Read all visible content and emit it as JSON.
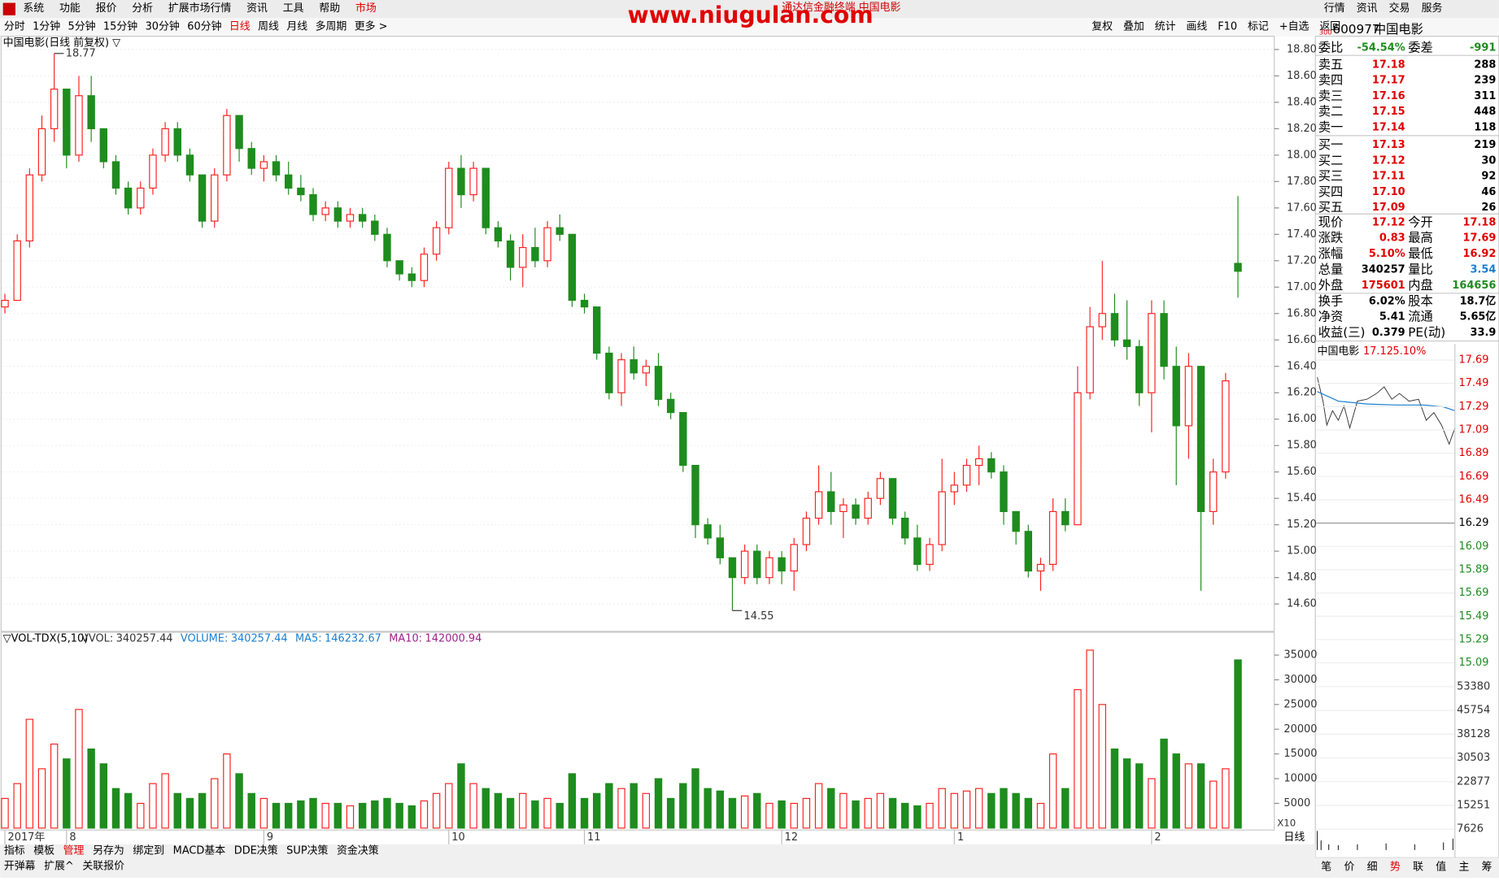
{
  "menu": [
    "系统",
    "功能",
    "报价",
    "分析",
    "扩展市场行情",
    "资讯",
    "工具",
    "帮助",
    "市场"
  ],
  "window_title": "通达信金融终端 中国电影",
  "watermark": "www.niugulan.com",
  "top_buttons": [
    "行情",
    "资讯",
    "交易",
    "服务"
  ],
  "periods": [
    "分时",
    "1分钟",
    "5分钟",
    "15分钟",
    "30分钟",
    "60分钟",
    "日线",
    "周线",
    "月线",
    "多周期",
    "更多 >"
  ],
  "active_period": 6,
  "tools": [
    "复权",
    "叠加",
    "统计",
    "画线",
    "F10",
    "标记",
    "+自选",
    "返回"
  ],
  "chart_data": {
    "type": "candlestick",
    "title": "中国电影(日线 前复权) ▽",
    "up_color": "#ff2020",
    "down_color": "#1e8c1e",
    "ylim": [
      14.4,
      18.9
    ],
    "yticks": [
      {
        "value": 14.6,
        "label": "14.60"
      },
      {
        "value": 14.8,
        "label": "14.80"
      },
      {
        "value": 15,
        "label": "15.00"
      },
      {
        "value": 15.2,
        "label": "15.20"
      },
      {
        "value": 15.4,
        "label": "15.40"
      },
      {
        "value": 15.6,
        "label": "15.60"
      },
      {
        "value": 15.8,
        "label": "15.80"
      },
      {
        "value": 16,
        "label": "16.00"
      },
      {
        "value": 16.2,
        "label": "16.20"
      },
      {
        "value": 16.4,
        "label": "16.40"
      },
      {
        "value": 16.6,
        "label": "16.60"
      },
      {
        "value": 16.8,
        "label": "16.80"
      },
      {
        "value": 17,
        "label": "17.00"
      },
      {
        "value": 17.2,
        "label": "17.20"
      },
      {
        "value": 17.4,
        "label": "17.40"
      },
      {
        "value": 17.6,
        "label": "17.60"
      },
      {
        "value": 17.8,
        "label": "17.80"
      },
      {
        "value": 18,
        "label": "18.00"
      },
      {
        "value": 18.2,
        "label": "18.20"
      },
      {
        "value": 18.4,
        "label": "18.40"
      },
      {
        "value": 18.6,
        "label": "18.60"
      },
      {
        "value": 18.8,
        "label": "18.80"
      }
    ],
    "max_label": 18.77,
    "min_label": 14.55,
    "categories": [
      "2017年",
      null,
      null,
      null,
      null,
      "8",
      null,
      null,
      null,
      null,
      null,
      null,
      null,
      null,
      null,
      null,
      null,
      null,
      null,
      null,
      null,
      "9",
      null,
      null,
      null,
      null,
      null,
      null,
      null,
      null,
      null,
      null,
      null,
      null,
      null,
      null,
      "10",
      null,
      null,
      null,
      null,
      null,
      null,
      null,
      null,
      null,
      null,
      "11",
      null,
      null,
      null,
      null,
      null,
      null,
      null,
      null,
      null,
      null,
      null,
      null,
      null,
      null,
      null,
      "12",
      null,
      null,
      null,
      null,
      null,
      null,
      null,
      null,
      null,
      null,
      null,
      null,
      null,
      "1",
      null,
      null,
      null,
      null,
      null,
      null,
      null,
      null,
      null,
      null,
      null,
      null,
      null,
      null,
      null,
      "2",
      null,
      null,
      null,
      null,
      null,
      null,
      null
    ],
    "candles": [
      [
        16.85,
        16.95,
        16.8,
        16.9,
        6000
      ],
      [
        16.9,
        17.4,
        16.9,
        17.35,
        9000
      ],
      [
        17.35,
        17.9,
        17.3,
        17.85,
        22000
      ],
      [
        17.85,
        18.3,
        17.8,
        18.2,
        12000
      ],
      [
        18.2,
        18.77,
        18.1,
        18.5,
        17000
      ],
      [
        18.5,
        18.5,
        17.9,
        18,
        14000
      ],
      [
        18,
        18.6,
        17.95,
        18.45,
        24000
      ],
      [
        18.45,
        18.6,
        18.1,
        18.2,
        16000
      ],
      [
        18.2,
        18.2,
        17.9,
        17.95,
        13000
      ],
      [
        17.95,
        18,
        17.7,
        17.75,
        8000
      ],
      [
        17.75,
        17.8,
        17.55,
        17.6,
        7000
      ],
      [
        17.6,
        17.8,
        17.55,
        17.75,
        5000
      ],
      [
        17.75,
        18.05,
        17.7,
        18,
        9000
      ],
      [
        18,
        18.25,
        17.95,
        18.2,
        11000
      ],
      [
        18.2,
        18.25,
        17.95,
        18,
        7000
      ],
      [
        18,
        18.05,
        17.8,
        17.85,
        6000
      ],
      [
        17.85,
        17.85,
        17.45,
        17.5,
        7000
      ],
      [
        17.5,
        17.9,
        17.45,
        17.85,
        10000
      ],
      [
        17.85,
        18.35,
        17.8,
        18.3,
        15000
      ],
      [
        18.3,
        18.3,
        17.95,
        18.05,
        11000
      ],
      [
        18.05,
        18.1,
        17.85,
        17.9,
        7000
      ],
      [
        17.9,
        18,
        17.8,
        17.95,
        6000
      ],
      [
        17.95,
        18,
        17.8,
        17.85,
        5000
      ],
      [
        17.85,
        17.95,
        17.7,
        17.75,
        5000
      ],
      [
        17.75,
        17.85,
        17.65,
        17.7,
        5500
      ],
      [
        17.7,
        17.75,
        17.5,
        17.55,
        6000
      ],
      [
        17.55,
        17.65,
        17.5,
        17.6,
        5000
      ],
      [
        17.6,
        17.65,
        17.45,
        17.5,
        5000
      ],
      [
        17.5,
        17.6,
        17.45,
        17.55,
        4500
      ],
      [
        17.55,
        17.6,
        17.45,
        17.5,
        5000
      ],
      [
        17.5,
        17.55,
        17.35,
        17.4,
        5500
      ],
      [
        17.4,
        17.45,
        17.15,
        17.2,
        6000
      ],
      [
        17.2,
        17.2,
        17.05,
        17.1,
        5000
      ],
      [
        17.1,
        17.15,
        17,
        17.05,
        4500
      ],
      [
        17.05,
        17.3,
        17,
        17.25,
        5500
      ],
      [
        17.25,
        17.5,
        17.2,
        17.45,
        7000
      ],
      [
        17.45,
        17.95,
        17.4,
        17.9,
        9000
      ],
      [
        17.9,
        18,
        17.6,
        17.7,
        13000
      ],
      [
        17.7,
        17.95,
        17.65,
        17.9,
        9000
      ],
      [
        17.9,
        17.9,
        17.4,
        17.45,
        8000
      ],
      [
        17.45,
        17.5,
        17.3,
        17.35,
        7000
      ],
      [
        17.35,
        17.4,
        17.05,
        17.15,
        6000
      ],
      [
        17.15,
        17.4,
        17,
        17.3,
        7000
      ],
      [
        17.3,
        17.45,
        17.15,
        17.2,
        5500
      ],
      [
        17.2,
        17.5,
        17.15,
        17.45,
        6000
      ],
      [
        17.45,
        17.55,
        17.35,
        17.4,
        5000
      ],
      [
        17.4,
        17.4,
        16.85,
        16.9,
        11000
      ],
      [
        16.9,
        16.95,
        16.8,
        16.85,
        6000
      ],
      [
        16.85,
        16.85,
        16.45,
        16.5,
        7000
      ],
      [
        16.5,
        16.55,
        16.15,
        16.2,
        9000
      ],
      [
        16.2,
        16.5,
        16.1,
        16.45,
        8000
      ],
      [
        16.45,
        16.55,
        16.3,
        16.35,
        9000
      ],
      [
        16.35,
        16.45,
        16.25,
        16.4,
        7000
      ],
      [
        16.4,
        16.5,
        16.1,
        16.15,
        10000
      ],
      [
        16.15,
        16.2,
        16,
        16.05,
        6000
      ],
      [
        16.05,
        16.05,
        15.6,
        15.65,
        9000
      ],
      [
        15.65,
        15.65,
        15.1,
        15.2,
        12000
      ],
      [
        15.2,
        15.25,
        15.05,
        15.1,
        8000
      ],
      [
        15.1,
        15.2,
        14.9,
        14.95,
        7500
      ],
      [
        14.95,
        14.95,
        14.55,
        14.8,
        6000
      ],
      [
        14.8,
        15.05,
        14.75,
        15,
        6500
      ],
      [
        15,
        15.05,
        14.75,
        14.8,
        7000
      ],
      [
        14.8,
        15,
        14.75,
        14.95,
        5000
      ],
      [
        14.95,
        15,
        14.75,
        14.85,
        5500
      ],
      [
        14.85,
        15.1,
        14.7,
        15.05,
        5000
      ],
      [
        15.05,
        15.3,
        15,
        15.25,
        6000
      ],
      [
        15.25,
        15.65,
        15.2,
        15.45,
        9000
      ],
      [
        15.45,
        15.6,
        15.2,
        15.3,
        8000
      ],
      [
        15.3,
        15.4,
        15.1,
        15.35,
        7000
      ],
      [
        15.35,
        15.4,
        15.2,
        15.25,
        5500
      ],
      [
        15.25,
        15.45,
        15.2,
        15.4,
        6000
      ],
      [
        15.4,
        15.6,
        15.35,
        15.55,
        7000
      ],
      [
        15.55,
        15.55,
        15.2,
        15.25,
        6000
      ],
      [
        15.25,
        15.3,
        15.05,
        15.1,
        5000
      ],
      [
        15.1,
        15.2,
        14.85,
        14.9,
        4500
      ],
      [
        14.9,
        15.1,
        14.85,
        15.05,
        5000
      ],
      [
        15.05,
        15.7,
        15,
        15.45,
        8000
      ],
      [
        15.45,
        15.6,
        15.35,
        15.5,
        7000
      ],
      [
        15.5,
        15.7,
        15.45,
        15.65,
        7500
      ],
      [
        15.65,
        15.8,
        15.5,
        15.7,
        8000
      ],
      [
        15.7,
        15.75,
        15.55,
        15.6,
        7000
      ],
      [
        15.6,
        15.65,
        15.2,
        15.3,
        8000
      ],
      [
        15.3,
        15.3,
        15.05,
        15.15,
        7000
      ],
      [
        15.15,
        15.2,
        14.8,
        14.85,
        6000
      ],
      [
        14.85,
        14.95,
        14.7,
        14.9,
        5000
      ],
      [
        14.9,
        15.4,
        14.85,
        15.3,
        15000
      ],
      [
        15.3,
        15.4,
        15.15,
        15.2,
        8000
      ],
      [
        15.2,
        16.4,
        15.2,
        16.2,
        28000
      ],
      [
        16.2,
        16.85,
        16.15,
        16.7,
        36000
      ],
      [
        16.7,
        17.2,
        16.6,
        16.8,
        25000
      ],
      [
        16.8,
        16.95,
        16.55,
        16.6,
        16000
      ],
      [
        16.6,
        16.9,
        16.45,
        16.55,
        14000
      ],
      [
        16.55,
        16.6,
        16.1,
        16.2,
        13000
      ],
      [
        16.2,
        16.9,
        15.9,
        16.8,
        10000
      ],
      [
        16.8,
        16.9,
        16.3,
        16.4,
        18000
      ],
      [
        16.4,
        16.55,
        15.5,
        15.95,
        15000
      ],
      [
        15.95,
        16.5,
        15.7,
        16.4,
        13000
      ],
      [
        16.4,
        16.4,
        14.7,
        15.3,
        13000
      ],
      [
        15.3,
        15.7,
        15.2,
        15.6,
        9500
      ],
      [
        15.6,
        16.35,
        15.55,
        16.29,
        12000
      ],
      [
        17.18,
        17.69,
        16.92,
        17.12,
        34026
      ]
    ]
  },
  "volume_chart": {
    "type": "bar",
    "title": "▽VOL-TDX(5,10)",
    "ylim": [
      0,
      37100
    ],
    "yticks": [
      5000,
      10000,
      15000,
      20000,
      25000,
      30000,
      35000
    ],
    "indicators": [
      {
        "name": "VVOL:",
        "value": 340257.44,
        "color": "#333333"
      },
      {
        "name": "VOLUME:",
        "value": 340257.44,
        "color": "#1a7fd0"
      },
      {
        "name": "MA5:",
        "value": 146232.67,
        "color": "#1a7fd0"
      },
      {
        "name": "MA10:",
        "value": 142000.94,
        "color": "#a0208a"
      }
    ],
    "scale_label": "X10"
  },
  "quote": {
    "badge": "300",
    "code": "600977",
    "name": "中国电影",
    "header": [
      [
        "委比",
        "-54.54%",
        "委差",
        "-991"
      ]
    ],
    "book": [
      [
        "卖五",
        "17.18",
        "288"
      ],
      [
        "卖四",
        "17.17",
        "239"
      ],
      [
        "卖三",
        "17.16",
        "311"
      ],
      [
        "卖二",
        "17.15",
        "448"
      ],
      [
        "卖一",
        "17.14",
        "118"
      ],
      [
        "买一",
        "17.13",
        "219"
      ],
      [
        "买二",
        "17.12",
        "30"
      ],
      [
        "买三",
        "17.11",
        "92"
      ],
      [
        "买四",
        "17.10",
        "46"
      ],
      [
        "买五",
        "17.09",
        "26"
      ]
    ],
    "stats": [
      [
        "现价",
        "17.12",
        "今开",
        "17.18"
      ],
      [
        "涨跌",
        "0.83",
        "最高",
        "17.69"
      ],
      [
        "涨幅",
        "5.10%",
        "最低",
        "16.92"
      ],
      [
        "总量",
        "340257",
        "量比",
        "3.54"
      ],
      [
        "外盘",
        "175601",
        "内盘",
        "164656"
      ],
      [
        "换手",
        "6.02%",
        "股本",
        "18.7亿"
      ],
      [
        "净资",
        "5.41",
        "流通",
        "5.65亿"
      ],
      [
        "收益(三)",
        "0.379",
        "PE(动)",
        "33.9"
      ]
    ],
    "stat_colors": [
      [
        "#e00000",
        "#e00000"
      ],
      [
        "#e00000",
        "#e00000"
      ],
      [
        "#e00000",
        "#e00000"
      ],
      [
        "#000000",
        "#1a7fd0"
      ],
      [
        "#e00000",
        "#1e8c1e"
      ],
      [
        "#000000",
        "#000000"
      ],
      [
        "#000000",
        "#000000"
      ],
      [
        "#000000",
        "#000000"
      ]
    ]
  },
  "mini_chart": {
    "name": "中国电影",
    "price": "17.12",
    "change": "5.10%",
    "ylim": [
      15.09,
      17.69
    ],
    "yticks": [
      17.69,
      17.49,
      17.29,
      17.09,
      16.89,
      16.69,
      16.49,
      16.29,
      16.09,
      15.89,
      15.69,
      15.49,
      15.29,
      15.09
    ],
    "prev_close": 16.29,
    "vticks": [
      53380,
      45754,
      38128,
      30503,
      22877,
      15251,
      7626
    ],
    "vlim": [
      0,
      53380
    ]
  },
  "bottom_tabs": [
    "指标",
    "模板",
    "管理",
    "另存为",
    "绑定到",
    "MACD基本",
    "DDE决策",
    "SUP决策",
    "资金决策"
  ],
  "bottom_tabs2": [
    "开弹幕",
    "扩展^",
    "关联报价"
  ],
  "period_button": "日线",
  "side_tabs": [
    "笔",
    "价",
    "细",
    "势",
    "联",
    "值",
    "主",
    "筹"
  ]
}
